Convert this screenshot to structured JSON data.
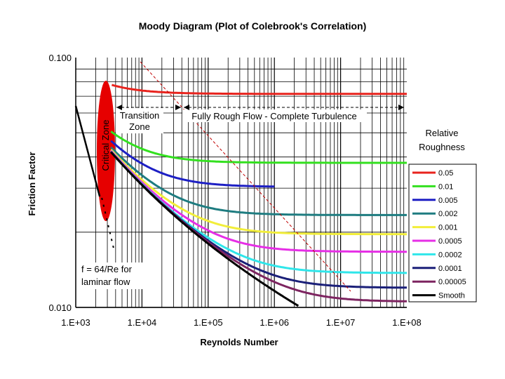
{
  "chart_data": {
    "type": "line",
    "title": "Moody Diagram (Plot of Colebrook's Correlation)",
    "xlabel": "Reynolds Number",
    "ylabel": "Friction Factor",
    "x_scale": "log",
    "y_scale": "log",
    "xlim": [
      1000,
      100000000
    ],
    "ylim": [
      0.01,
      0.1
    ],
    "x_tick_labels": [
      "1.E+03",
      "1.E+04",
      "1.E+05",
      "1.E+06",
      "1.E+07",
      "1.E+08"
    ],
    "y_tick_labels": [
      "0.100",
      "0.010"
    ],
    "grid": true,
    "legend_title": "Relative Roughness",
    "legend_position": "right",
    "series": [
      {
        "name": "0.05",
        "color": "#e8231d"
      },
      {
        "name": "0.01",
        "color": "#33e01f"
      },
      {
        "name": "0.005",
        "color": "#1d1fc4"
      },
      {
        "name": "0.002",
        "color": "#1e7c80"
      },
      {
        "name": "0.001",
        "color": "#f2ee3a"
      },
      {
        "name": "0.0005",
        "color": "#e62ee6"
      },
      {
        "name": "0.0002",
        "color": "#2fe6ea"
      },
      {
        "name": "0.0001",
        "color": "#1a1f78"
      },
      {
        "name": "0.00005",
        "color": "#7d2460"
      },
      {
        "name": "Smooth",
        "color": "#000000"
      }
    ],
    "laminar": {
      "x": [
        1000,
        2300
      ],
      "y": [
        0.064,
        0.0278
      ]
    },
    "annotations": {
      "critical_zone": "Critical Zone",
      "transition_zone": [
        "Transition",
        "Zone"
      ],
      "fully_rough": "Fully Rough Flow - Complete Turbulence",
      "laminar_note": [
        "f = 64/Re for",
        "laminar flow"
      ]
    },
    "colors": {
      "critical_zone": "#e60000",
      "dashed_boundary": "#c00000"
    }
  }
}
